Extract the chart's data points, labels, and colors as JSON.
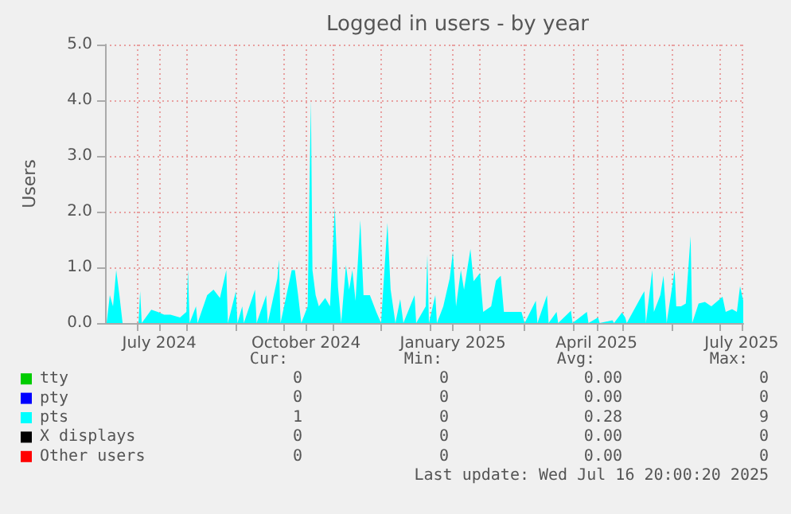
{
  "chart_data": {
    "type": "area",
    "title": "Logged in users - by year",
    "ylabel": "Users",
    "xlim": [
      "2024-06-11",
      "2025-07-16"
    ],
    "xticks": [
      {
        "value": "2024-07-01",
        "label": null
      },
      {
        "value": "2024-07-15",
        "label": "July 2024"
      },
      {
        "value": "2024-08-01",
        "label": null
      },
      {
        "value": "2024-09-01",
        "label": null
      },
      {
        "value": "2024-10-01",
        "label": null
      },
      {
        "value": "2024-10-15",
        "label": "October 2024"
      },
      {
        "value": "2024-11-01",
        "label": null
      },
      {
        "value": "2024-12-01",
        "label": null
      },
      {
        "value": "2025-01-01",
        "label": null
      },
      {
        "value": "2025-01-15",
        "label": "January 2025"
      },
      {
        "value": "2025-02-01",
        "label": null
      },
      {
        "value": "2025-03-01",
        "label": null
      },
      {
        "value": "2025-04-01",
        "label": null
      },
      {
        "value": "2025-04-15",
        "label": "April 2025"
      },
      {
        "value": "2025-05-01",
        "label": null
      },
      {
        "value": "2025-06-01",
        "label": null
      },
      {
        "value": "2025-07-01",
        "label": null
      },
      {
        "value": "2025-07-15",
        "label": "July 2025"
      }
    ],
    "ylim": [
      0,
      5
    ],
    "yticks": [
      {
        "value": 0,
        "label": "0.0"
      },
      {
        "value": 1,
        "label": "1.0"
      },
      {
        "value": 2,
        "label": "2.0"
      },
      {
        "value": 3,
        "label": "3.0"
      },
      {
        "value": 4,
        "label": "4.0"
      },
      {
        "value": 5,
        "label": "5.0"
      }
    ],
    "grid": true,
    "legend": "bottom left",
    "series": [
      {
        "name": "tty",
        "type": "line",
        "color": "#00cc00"
      },
      {
        "name": "pty",
        "type": "line",
        "color": "#0000ff"
      },
      {
        "name": "pts",
        "color": "#00ffff",
        "x": [
          "2024-06-12",
          "2024-06-14",
          "2024-06-16",
          "2024-06-18",
          "2024-06-20",
          "2024-06-22",
          "2024-07-02",
          "2024-07-03",
          "2024-07-04",
          "2024-07-10",
          "2024-07-14",
          "2024-07-18",
          "2024-07-22",
          "2024-07-28",
          "2024-08-01",
          "2024-08-02",
          "2024-08-03",
          "2024-08-07",
          "2024-08-08",
          "2024-08-14",
          "2024-08-18",
          "2024-08-22",
          "2024-08-26",
          "2024-08-27",
          "2024-09-01",
          "2024-09-02",
          "2024-09-05",
          "2024-09-06",
          "2024-09-13",
          "2024-09-14",
          "2024-09-20",
          "2024-09-21",
          "2024-09-27",
          "2024-09-28",
          "2024-09-29",
          "2024-10-06",
          "2024-10-08",
          "2024-10-10",
          "2024-10-12",
          "2024-10-16",
          "2024-10-18",
          "2024-10-19",
          "2024-10-21",
          "2024-10-23",
          "2024-10-27",
          "2024-10-30",
          "2024-11-02",
          "2024-11-04",
          "2024-11-06",
          "2024-11-09",
          "2024-11-11",
          "2024-11-13",
          "2024-11-15",
          "2024-11-18",
          "2024-11-20",
          "2024-11-24",
          "2024-11-28",
          "2024-12-01",
          "2024-12-05",
          "2024-12-07",
          "2024-12-10",
          "2024-12-13",
          "2024-12-15",
          "2024-12-22",
          "2024-12-23",
          "2024-12-29",
          "2024-12-30",
          "2024-12-31",
          "2025-01-04",
          "2025-01-05",
          "2025-01-09",
          "2025-01-13",
          "2025-01-15",
          "2025-01-17",
          "2025-01-20",
          "2025-01-22",
          "2025-01-26",
          "2025-01-28",
          "2025-02-01",
          "2025-02-03",
          "2025-02-08",
          "2025-02-11",
          "2025-02-14",
          "2025-02-16",
          "2025-02-20",
          "2025-02-27",
          "2025-03-01",
          "2025-03-08",
          "2025-03-09",
          "2025-03-15",
          "2025-03-16",
          "2025-03-21",
          "2025-03-22",
          "2025-03-30",
          "2025-03-31",
          "2025-04-09",
          "2025-04-10",
          "2025-04-16",
          "2025-04-17",
          "2025-04-25",
          "2025-04-26",
          "2025-05-01",
          "2025-05-03",
          "2025-05-04",
          "2025-05-13",
          "2025-05-15",
          "2025-05-16",
          "2025-05-20",
          "2025-05-21",
          "2025-05-25",
          "2025-05-27",
          "2025-05-29",
          "2025-06-03",
          "2025-06-04",
          "2025-06-07",
          "2025-06-10",
          "2025-06-13",
          "2025-06-14",
          "2025-06-18",
          "2025-06-22",
          "2025-06-26",
          "2025-07-03",
          "2025-07-05",
          "2025-07-09",
          "2025-07-12",
          "2025-07-14",
          "2025-07-16"
        ],
        "values": [
          0,
          0.5,
          0.3,
          0.95,
          0.5,
          0,
          0,
          0.57,
          0,
          0.24,
          0.2,
          0.15,
          0.15,
          0.1,
          0.2,
          0.95,
          0,
          0.3,
          0,
          0.5,
          0.6,
          0.45,
          0.95,
          0,
          0.57,
          0,
          0.3,
          0,
          0.6,
          0,
          0.5,
          0,
          0.8,
          1.14,
          0,
          0.95,
          0.95,
          0.5,
          0,
          0.3,
          4.0,
          0.95,
          0.5,
          0.3,
          0.45,
          0.3,
          2.08,
          0.65,
          0,
          1.04,
          0.6,
          0.95,
          0.4,
          1.85,
          0.5,
          0.5,
          0.2,
          0,
          1.8,
          0.6,
          0,
          0.43,
          0,
          0.5,
          0,
          0.3,
          1.23,
          0,
          0.5,
          0,
          0.3,
          0.8,
          1.28,
          0.3,
          0.95,
          0.6,
          1.33,
          0.75,
          0.9,
          0.2,
          0.3,
          0.76,
          0.85,
          0.2,
          0.2,
          0.2,
          0,
          0.4,
          0,
          0.5,
          0,
          0.2,
          0,
          0.22,
          0,
          0.2,
          0,
          0.1,
          0,
          0.05,
          0,
          0.19,
          0.1,
          0,
          0.47,
          0.57,
          0,
          0.95,
          0.2,
          0.5,
          0.85,
          0,
          0.95,
          0.3,
          0.3,
          0.35,
          1.56,
          0,
          0.35,
          0.38,
          0.3,
          0.47,
          0.2,
          0.25,
          0.2,
          0.66,
          0.4
        ]
      },
      {
        "name": "X displays",
        "type": "line",
        "color": "#000000"
      },
      {
        "name": "Other users",
        "type": "line",
        "color": "#ff0000"
      }
    ],
    "annotations": [
      "Cur:",
      "Min:",
      "Avg:",
      "Max:",
      "0",
      "0",
      "0.00",
      "0",
      "0",
      "0",
      "0.00",
      "0",
      "1",
      "0",
      "0.28",
      "9",
      "0",
      "0",
      "0.00",
      "0",
      "0",
      "0",
      "0.00",
      "0",
      "Last update: Wed Jul 16 20:00:20 2025"
    ]
  }
}
